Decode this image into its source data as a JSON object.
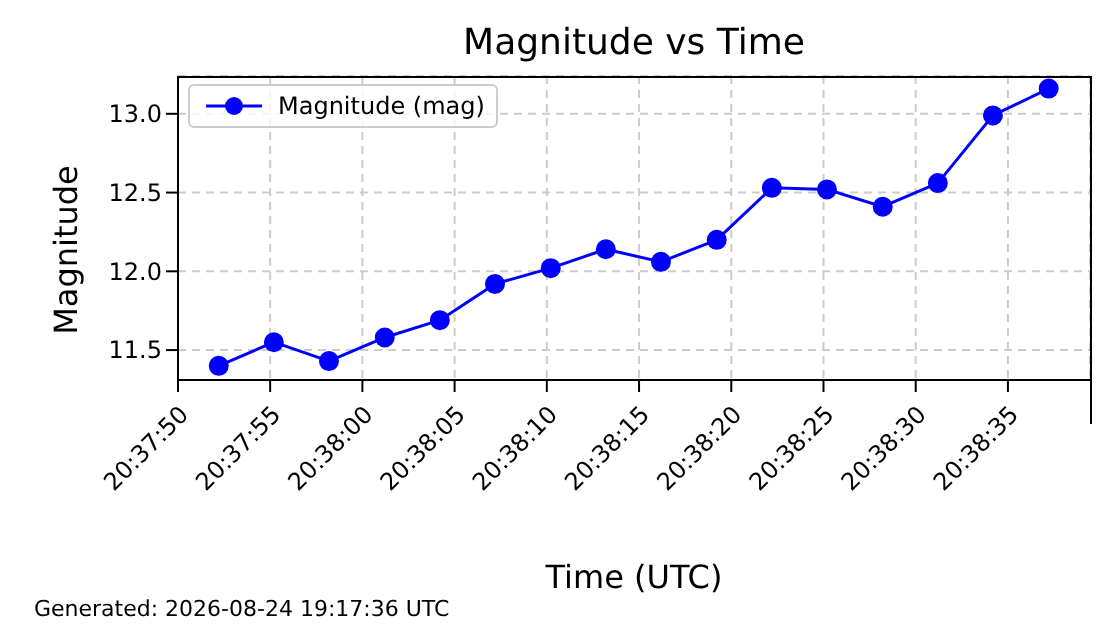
{
  "chart_data": {
    "type": "line",
    "title": "Magnitude vs Time",
    "xlabel": "Time (UTC)",
    "ylabel": "Magnitude",
    "annotations": [
      "Generated: 2026-08-24 19:17:36 UTC"
    ],
    "x": [
      20.63117,
      20.632,
      20.63283,
      20.63367,
      20.6345,
      20.63533,
      20.63617,
      20.637,
      20.63783,
      20.63867,
      20.6395,
      20.64033,
      20.64117,
      20.642,
      20.64283,
      20.64367
    ],
    "series": [
      {
        "name": "Magnitude (mag)",
        "color": "#0000ff",
        "values": [
          11.4,
          11.55,
          11.43,
          11.58,
          11.69,
          11.92,
          12.02,
          12.14,
          12.06,
          12.2,
          12.53,
          12.52,
          12.41,
          12.56,
          12.99,
          13.16
        ]
      }
    ],
    "xlim": [
      20.630556,
      20.644292
    ],
    "xticks": [
      {
        "value": 20.630556,
        "label": "20:37:50"
      },
      {
        "value": 20.631944,
        "label": "20:37:55"
      },
      {
        "value": 20.633333,
        "label": "20:38:00"
      },
      {
        "value": 20.634722,
        "label": "20:38:05"
      },
      {
        "value": 20.636111,
        "label": "20:38:10"
      },
      {
        "value": 20.6375,
        "label": "20:38:15"
      },
      {
        "value": 20.638889,
        "label": "20:38:20"
      },
      {
        "value": 20.640278,
        "label": "20:38:25"
      },
      {
        "value": 20.641667,
        "label": "20:38:30"
      },
      {
        "value": 20.643056,
        "label": "20:38:35"
      }
    ],
    "ylim": [
      11.31,
      13.24
    ],
    "yticks": [
      {
        "value": 11.5,
        "label": "11.5"
      },
      {
        "value": 12.0,
        "label": "12.0"
      },
      {
        "value": 12.5,
        "label": "12.5"
      },
      {
        "value": 13.0,
        "label": "13.0"
      }
    ],
    "grid": true,
    "legend": "top left",
    "marker": "circle",
    "line_style": "solid"
  }
}
